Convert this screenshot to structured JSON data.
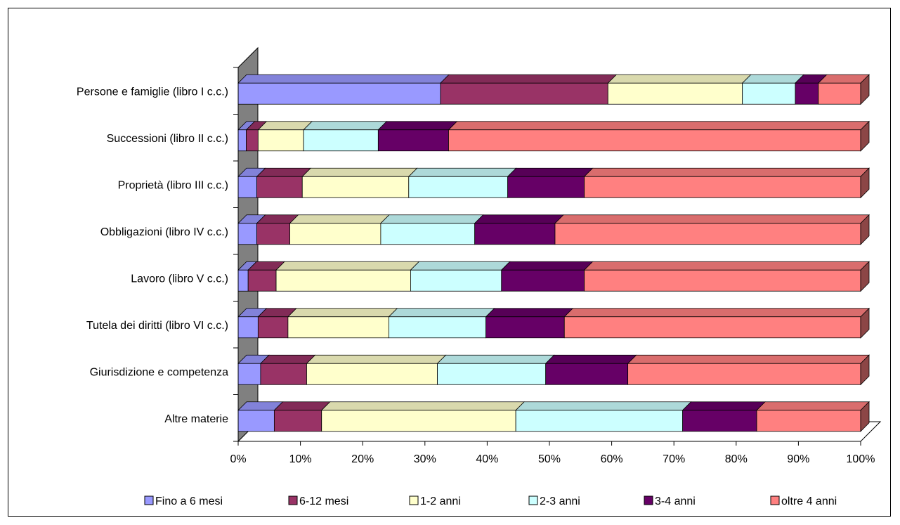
{
  "chart_data": {
    "type": "bar",
    "orientation": "horizontal",
    "stacked": "percent",
    "three_d": true,
    "categories": [
      "Persone e famiglie (libro I c.c.)",
      "Successioni (libro II c.c.)",
      "Proprietà (libro III c.c.)",
      "Obbligazioni  (libro IV c.c.)",
      "Lavoro (libro V c.c.)",
      "Tutela dei diritti (libro VI c.c.)",
      "Giurisdizione e competenza",
      "Altre materie"
    ],
    "series": [
      {
        "name": "Fino a 6 mesi",
        "color": "#9999FF",
        "values": [
          32.5,
          1.3,
          3.0,
          3.0,
          1.6,
          3.2,
          3.6,
          5.8
        ]
      },
      {
        "name": "6-12 mesi",
        "color": "#993366",
        "values": [
          26.9,
          1.9,
          7.3,
          5.3,
          4.5,
          4.8,
          7.4,
          7.6
        ]
      },
      {
        "name": "1-2 anni",
        "color": "#FFFFCC",
        "values": [
          21.6,
          7.3,
          17.1,
          14.6,
          21.6,
          16.2,
          21.0,
          31.2
        ]
      },
      {
        "name": "2-3 anni",
        "color": "#CCFFFF",
        "values": [
          8.5,
          12.0,
          15.9,
          15.1,
          14.6,
          15.6,
          17.4,
          26.8
        ]
      },
      {
        "name": "3-4 anni",
        "color": "#660066",
        "values": [
          3.7,
          11.3,
          12.3,
          12.9,
          13.3,
          12.6,
          13.2,
          11.9
        ]
      },
      {
        "name": "oltre 4 anni",
        "color": "#FF8080",
        "values": [
          6.8,
          66.2,
          44.4,
          49.1,
          44.4,
          47.6,
          37.4,
          16.7
        ]
      }
    ],
    "xlim": [
      0,
      100
    ],
    "x_ticks": [
      "0%",
      "10%",
      "20%",
      "30%",
      "40%",
      "50%",
      "60%",
      "70%",
      "80%",
      "90%",
      "100%"
    ],
    "legend_position": "bottom",
    "grid": false
  }
}
